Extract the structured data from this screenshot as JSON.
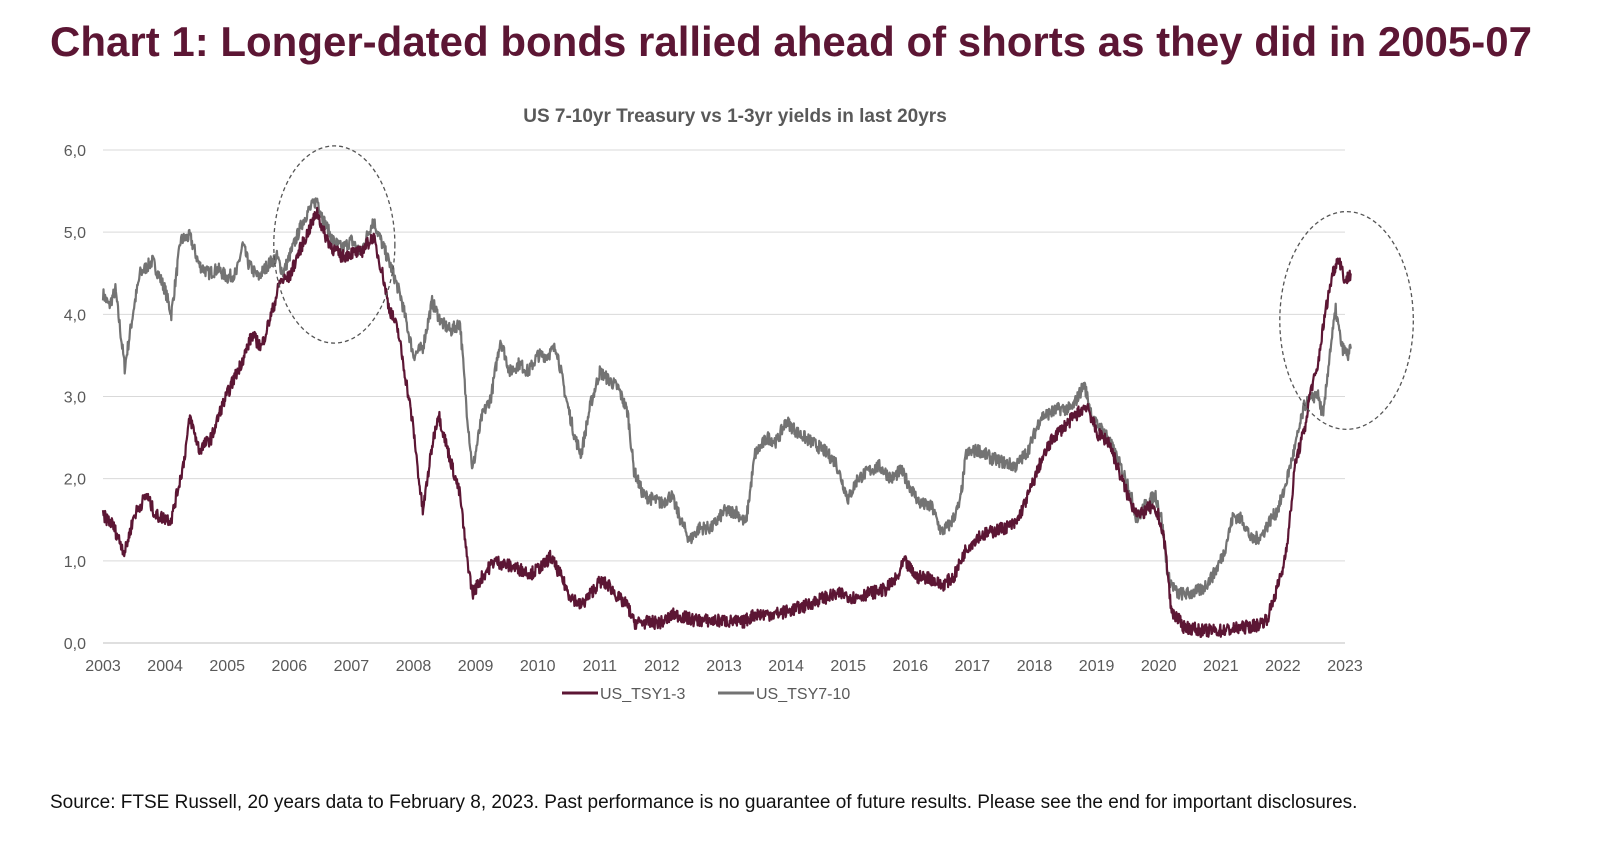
{
  "headline": "Chart 1: Longer-dated bonds rallied ahead of shorts as they did in 2005-07",
  "footnote": "Source: FTSE Russell, 20 years data to February 8, 2023. Past performance is no guarantee of future results. Please see the end for important disclosures.",
  "colors": {
    "short": "#5c1634",
    "long": "#737373",
    "grid": "#d9d9d9",
    "axis_text": "#595959",
    "circle": "#555555"
  },
  "chart_data": {
    "type": "line",
    "title": "US 7-10yr Treasury vs 1-3yr yields in last 20yrs",
    "xlabel": "",
    "ylabel": "",
    "xlim": [
      2003,
      2023
    ],
    "ylim": [
      0,
      6
    ],
    "grid": true,
    "legend_position": "bottom-center",
    "x_ticks": [
      "2003",
      "2004",
      "2005",
      "2006",
      "2007",
      "2008",
      "2009",
      "2010",
      "2011",
      "2012",
      "2013",
      "2014",
      "2015",
      "2016",
      "2017",
      "2018",
      "2019",
      "2020",
      "2021",
      "2022",
      "2023"
    ],
    "y_ticks": [
      "0,0",
      "1,0",
      "2,0",
      "3,0",
      "4,0",
      "5,0",
      "6,0"
    ],
    "series": [
      {
        "name": "US_TSY1-3",
        "color_key": "short",
        "points": [
          [
            2003.0,
            1.55
          ],
          [
            2003.15,
            1.45
          ],
          [
            2003.35,
            1.1
          ],
          [
            2003.5,
            1.55
          ],
          [
            2003.7,
            1.8
          ],
          [
            2003.85,
            1.55
          ],
          [
            2004.1,
            1.5
          ],
          [
            2004.3,
            2.2
          ],
          [
            2004.4,
            2.75
          ],
          [
            2004.55,
            2.35
          ],
          [
            2004.75,
            2.5
          ],
          [
            2004.9,
            2.85
          ],
          [
            2005.1,
            3.2
          ],
          [
            2005.25,
            3.45
          ],
          [
            2005.4,
            3.75
          ],
          [
            2005.55,
            3.6
          ],
          [
            2005.75,
            4.1
          ],
          [
            2005.85,
            4.4
          ],
          [
            2006.0,
            4.45
          ],
          [
            2006.15,
            4.75
          ],
          [
            2006.3,
            5.0
          ],
          [
            2006.45,
            5.25
          ],
          [
            2006.55,
            5.0
          ],
          [
            2006.7,
            4.8
          ],
          [
            2006.85,
            4.7
          ],
          [
            2007.0,
            4.75
          ],
          [
            2007.15,
            4.75
          ],
          [
            2007.35,
            4.95
          ],
          [
            2007.5,
            4.5
          ],
          [
            2007.6,
            4.1
          ],
          [
            2007.75,
            3.8
          ],
          [
            2007.9,
            3.1
          ],
          [
            2008.0,
            2.6
          ],
          [
            2008.1,
            1.9
          ],
          [
            2008.15,
            1.6
          ],
          [
            2008.3,
            2.4
          ],
          [
            2008.4,
            2.8
          ],
          [
            2008.55,
            2.35
          ],
          [
            2008.75,
            1.8
          ],
          [
            2008.85,
            1.1
          ],
          [
            2008.95,
            0.6
          ],
          [
            2009.1,
            0.8
          ],
          [
            2009.3,
            1.0
          ],
          [
            2009.5,
            0.95
          ],
          [
            2009.7,
            0.9
          ],
          [
            2009.9,
            0.85
          ],
          [
            2010.1,
            0.95
          ],
          [
            2010.2,
            1.05
          ],
          [
            2010.35,
            0.85
          ],
          [
            2010.5,
            0.6
          ],
          [
            2010.7,
            0.45
          ],
          [
            2010.85,
            0.6
          ],
          [
            2011.0,
            0.75
          ],
          [
            2011.15,
            0.7
          ],
          [
            2011.3,
            0.55
          ],
          [
            2011.45,
            0.45
          ],
          [
            2011.55,
            0.25
          ],
          [
            2011.75,
            0.25
          ],
          [
            2012.0,
            0.25
          ],
          [
            2012.2,
            0.35
          ],
          [
            2012.5,
            0.28
          ],
          [
            2012.8,
            0.27
          ],
          [
            2013.0,
            0.27
          ],
          [
            2013.3,
            0.25
          ],
          [
            2013.5,
            0.35
          ],
          [
            2013.8,
            0.35
          ],
          [
            2014.0,
            0.38
          ],
          [
            2014.3,
            0.45
          ],
          [
            2014.6,
            0.55
          ],
          [
            2014.9,
            0.6
          ],
          [
            2015.1,
            0.55
          ],
          [
            2015.3,
            0.6
          ],
          [
            2015.6,
            0.65
          ],
          [
            2015.8,
            0.8
          ],
          [
            2015.9,
            1.0
          ],
          [
            2016.1,
            0.8
          ],
          [
            2016.3,
            0.8
          ],
          [
            2016.5,
            0.7
          ],
          [
            2016.7,
            0.8
          ],
          [
            2016.9,
            1.15
          ],
          [
            2017.1,
            1.3
          ],
          [
            2017.3,
            1.35
          ],
          [
            2017.5,
            1.4
          ],
          [
            2017.7,
            1.45
          ],
          [
            2017.9,
            1.8
          ],
          [
            2018.1,
            2.2
          ],
          [
            2018.3,
            2.5
          ],
          [
            2018.5,
            2.65
          ],
          [
            2018.7,
            2.8
          ],
          [
            2018.85,
            2.9
          ],
          [
            2019.0,
            2.55
          ],
          [
            2019.2,
            2.45
          ],
          [
            2019.4,
            2.0
          ],
          [
            2019.55,
            1.7
          ],
          [
            2019.7,
            1.55
          ],
          [
            2019.85,
            1.65
          ],
          [
            2020.0,
            1.55
          ],
          [
            2020.1,
            1.2
          ],
          [
            2020.2,
            0.4
          ],
          [
            2020.4,
            0.2
          ],
          [
            2020.7,
            0.15
          ],
          [
            2021.0,
            0.15
          ],
          [
            2021.3,
            0.18
          ],
          [
            2021.6,
            0.22
          ],
          [
            2021.75,
            0.3
          ],
          [
            2021.9,
            0.65
          ],
          [
            2022.0,
            0.9
          ],
          [
            2022.1,
            1.4
          ],
          [
            2022.2,
            2.2
          ],
          [
            2022.35,
            2.6
          ],
          [
            2022.45,
            3.1
          ],
          [
            2022.55,
            3.3
          ],
          [
            2022.6,
            3.6
          ],
          [
            2022.7,
            4.1
          ],
          [
            2022.8,
            4.5
          ],
          [
            2022.9,
            4.7
          ],
          [
            2023.0,
            4.4
          ],
          [
            2023.1,
            4.5
          ]
        ]
      },
      {
        "name": "US_TSY7-10",
        "color_key": "long",
        "points": [
          [
            2003.0,
            4.25
          ],
          [
            2003.1,
            4.1
          ],
          [
            2003.2,
            4.3
          ],
          [
            2003.35,
            3.35
          ],
          [
            2003.5,
            4.1
          ],
          [
            2003.6,
            4.5
          ],
          [
            2003.8,
            4.65
          ],
          [
            2004.0,
            4.3
          ],
          [
            2004.1,
            4.0
          ],
          [
            2004.25,
            4.9
          ],
          [
            2004.4,
            4.95
          ],
          [
            2004.55,
            4.6
          ],
          [
            2004.7,
            4.5
          ],
          [
            2004.85,
            4.55
          ],
          [
            2005.0,
            4.45
          ],
          [
            2005.15,
            4.5
          ],
          [
            2005.25,
            4.85
          ],
          [
            2005.35,
            4.6
          ],
          [
            2005.5,
            4.45
          ],
          [
            2005.65,
            4.6
          ],
          [
            2005.8,
            4.7
          ],
          [
            2005.9,
            4.5
          ],
          [
            2006.05,
            4.8
          ],
          [
            2006.2,
            5.1
          ],
          [
            2006.3,
            5.25
          ],
          [
            2006.45,
            5.4
          ],
          [
            2006.55,
            5.15
          ],
          [
            2006.7,
            4.9
          ],
          [
            2006.85,
            4.8
          ],
          [
            2007.0,
            4.9
          ],
          [
            2007.15,
            4.75
          ],
          [
            2007.35,
            5.15
          ],
          [
            2007.5,
            4.85
          ],
          [
            2007.65,
            4.55
          ],
          [
            2007.8,
            4.2
          ],
          [
            2007.9,
            3.85
          ],
          [
            2008.0,
            3.5
          ],
          [
            2008.15,
            3.6
          ],
          [
            2008.3,
            4.15
          ],
          [
            2008.45,
            3.9
          ],
          [
            2008.6,
            3.8
          ],
          [
            2008.75,
            3.9
          ],
          [
            2008.85,
            2.9
          ],
          [
            2008.95,
            2.1
          ],
          [
            2009.1,
            2.75
          ],
          [
            2009.25,
            3.0
          ],
          [
            2009.4,
            3.7
          ],
          [
            2009.55,
            3.3
          ],
          [
            2009.7,
            3.4
          ],
          [
            2009.85,
            3.3
          ],
          [
            2010.0,
            3.5
          ],
          [
            2010.15,
            3.5
          ],
          [
            2010.3,
            3.6
          ],
          [
            2010.45,
            3.0
          ],
          [
            2010.6,
            2.5
          ],
          [
            2010.7,
            2.3
          ],
          [
            2010.85,
            2.9
          ],
          [
            2011.0,
            3.3
          ],
          [
            2011.15,
            3.2
          ],
          [
            2011.3,
            3.1
          ],
          [
            2011.45,
            2.8
          ],
          [
            2011.55,
            2.1
          ],
          [
            2011.7,
            1.8
          ],
          [
            2011.85,
            1.75
          ],
          [
            2012.0,
            1.7
          ],
          [
            2012.15,
            1.8
          ],
          [
            2012.3,
            1.5
          ],
          [
            2012.45,
            1.25
          ],
          [
            2012.6,
            1.4
          ],
          [
            2012.8,
            1.4
          ],
          [
            2013.0,
            1.6
          ],
          [
            2013.2,
            1.6
          ],
          [
            2013.35,
            1.45
          ],
          [
            2013.5,
            2.3
          ],
          [
            2013.7,
            2.5
          ],
          [
            2013.85,
            2.45
          ],
          [
            2014.0,
            2.7
          ],
          [
            2014.2,
            2.55
          ],
          [
            2014.4,
            2.45
          ],
          [
            2014.6,
            2.35
          ],
          [
            2014.8,
            2.2
          ],
          [
            2015.0,
            1.75
          ],
          [
            2015.15,
            2.0
          ],
          [
            2015.35,
            2.1
          ],
          [
            2015.5,
            2.15
          ],
          [
            2015.7,
            2.0
          ],
          [
            2015.85,
            2.1
          ],
          [
            2016.0,
            1.9
          ],
          [
            2016.15,
            1.7
          ],
          [
            2016.35,
            1.65
          ],
          [
            2016.5,
            1.35
          ],
          [
            2016.65,
            1.45
          ],
          [
            2016.8,
            1.7
          ],
          [
            2016.9,
            2.3
          ],
          [
            2017.1,
            2.35
          ],
          [
            2017.3,
            2.25
          ],
          [
            2017.5,
            2.2
          ],
          [
            2017.7,
            2.15
          ],
          [
            2017.9,
            2.35
          ],
          [
            2018.1,
            2.75
          ],
          [
            2018.25,
            2.8
          ],
          [
            2018.4,
            2.85
          ],
          [
            2018.6,
            2.85
          ],
          [
            2018.8,
            3.15
          ],
          [
            2018.95,
            2.7
          ],
          [
            2019.15,
            2.55
          ],
          [
            2019.3,
            2.3
          ],
          [
            2019.5,
            1.95
          ],
          [
            2019.65,
            1.5
          ],
          [
            2019.8,
            1.7
          ],
          [
            2019.95,
            1.8
          ],
          [
            2020.05,
            1.5
          ],
          [
            2020.15,
            0.8
          ],
          [
            2020.3,
            0.6
          ],
          [
            2020.5,
            0.6
          ],
          [
            2020.7,
            0.65
          ],
          [
            2020.9,
            0.85
          ],
          [
            2021.05,
            1.1
          ],
          [
            2021.2,
            1.55
          ],
          [
            2021.35,
            1.5
          ],
          [
            2021.5,
            1.25
          ],
          [
            2021.65,
            1.3
          ],
          [
            2021.8,
            1.5
          ],
          [
            2021.9,
            1.6
          ],
          [
            2022.0,
            1.8
          ],
          [
            2022.1,
            2.1
          ],
          [
            2022.2,
            2.4
          ],
          [
            2022.35,
            2.9
          ],
          [
            2022.45,
            2.95
          ],
          [
            2022.55,
            3.05
          ],
          [
            2022.65,
            2.75
          ],
          [
            2022.75,
            3.5
          ],
          [
            2022.85,
            4.05
          ],
          [
            2022.95,
            3.6
          ],
          [
            2023.05,
            3.5
          ],
          [
            2023.1,
            3.6
          ]
        ]
      }
    ],
    "annotations": [
      {
        "type": "dashed-ellipse",
        "note": "highlight",
        "x_range": [
          2005.75,
          2007.7
        ],
        "y_range": [
          3.65,
          6.05
        ]
      },
      {
        "type": "dashed-ellipse",
        "note": "highlight",
        "x_range": [
          2021.95,
          2024.1
        ],
        "y_range": [
          2.6,
          5.25
        ]
      }
    ]
  }
}
